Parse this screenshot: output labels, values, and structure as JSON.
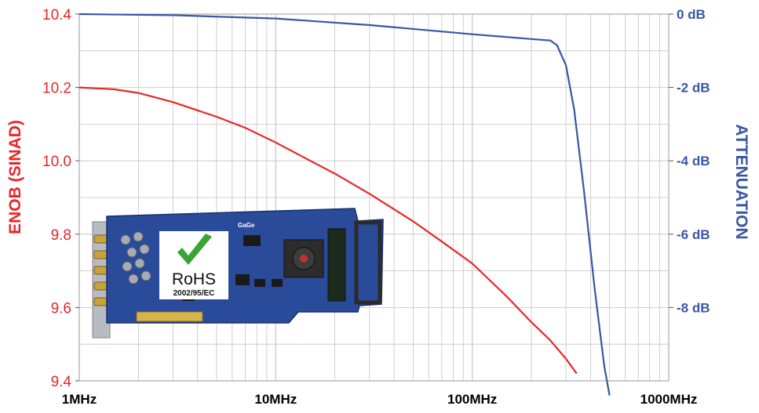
{
  "colors": {
    "left_axis": "#e8262a",
    "right_axis": "#3a56a3",
    "grid": "#c4c4c4",
    "board": "#1f3f8f",
    "rohs_check": "#3aa335"
  },
  "chart_data": {
    "type": "line",
    "xscale": "log",
    "xlim": [
      1,
      1000
    ],
    "x_ticks": [
      {
        "value": 1,
        "label": "1MHz"
      },
      {
        "value": 10,
        "label": "10MHz"
      },
      {
        "value": 100,
        "label": "100MHz"
      },
      {
        "value": 1000,
        "label": "1000MHz"
      }
    ],
    "y_left": {
      "label": "ENOB (SINAD)",
      "lim": [
        9.4,
        10.4
      ],
      "ticks": [
        "9.4",
        "9.6",
        "9.8",
        "10.0",
        "10.2",
        "10.4"
      ],
      "tick_values": [
        9.4,
        9.6,
        9.8,
        10.0,
        10.2,
        10.4
      ]
    },
    "y_right": {
      "label": "ATTENUATION",
      "lim": [
        -10,
        0
      ],
      "ticks": [
        "0 dB",
        "-2 dB",
        "-4 dB",
        "-6 dB",
        "-8 dB"
      ],
      "tick_values": [
        0,
        -2,
        -4,
        -6,
        -8
      ]
    },
    "series": [
      {
        "axis": "left",
        "x": [
          1,
          1.5,
          2,
          3,
          5,
          7,
          10,
          15,
          20,
          30,
          50,
          70,
          100,
          150,
          200,
          250,
          300,
          340
        ],
        "values": [
          10.2,
          10.195,
          10.185,
          10.16,
          10.12,
          10.09,
          10.05,
          10.0,
          9.965,
          9.91,
          9.835,
          9.78,
          9.72,
          9.63,
          9.56,
          9.51,
          9.46,
          9.42
        ]
      },
      {
        "axis": "right",
        "x": [
          1,
          3,
          10,
          30,
          100,
          200,
          250,
          270,
          300,
          330,
          370,
          420,
          470,
          500
        ],
        "values": [
          0,
          -0.03,
          -0.12,
          -0.3,
          -0.55,
          -0.68,
          -0.72,
          -0.85,
          -1.4,
          -2.6,
          -4.8,
          -7.5,
          -9.6,
          -10.4
        ]
      }
    ]
  },
  "inset": {
    "rohs_title": "RoHS",
    "rohs_subtitle": "2002/95/EC",
    "board_logo": "GaGe"
  }
}
